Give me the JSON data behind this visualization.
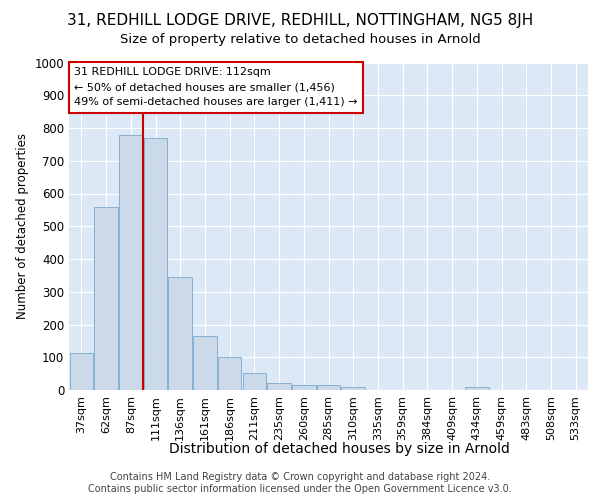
{
  "title1": "31, REDHILL LODGE DRIVE, REDHILL, NOTTINGHAM, NG5 8JH",
  "title2": "Size of property relative to detached houses in Arnold",
  "xlabel": "Distribution of detached houses by size in Arnold",
  "ylabel": "Number of detached properties",
  "categories": [
    "37sqm",
    "62sqm",
    "87sqm",
    "111sqm",
    "136sqm",
    "161sqm",
    "186sqm",
    "211sqm",
    "235sqm",
    "260sqm",
    "285sqm",
    "310sqm",
    "335sqm",
    "359sqm",
    "384sqm",
    "409sqm",
    "434sqm",
    "459sqm",
    "483sqm",
    "508sqm",
    "533sqm"
  ],
  "values": [
    112,
    560,
    780,
    770,
    345,
    165,
    100,
    52,
    20,
    15,
    15,
    8,
    0,
    0,
    0,
    0,
    10,
    0,
    0,
    0,
    0
  ],
  "bar_color": "#ccd9e8",
  "bar_edge_color": "#7aaad0",
  "annotation_text1": "31 REDHILL LODGE DRIVE: 112sqm",
  "annotation_text2": "← 50% of detached houses are smaller (1,456)",
  "annotation_text3": "49% of semi-detached houses are larger (1,411) →",
  "annotation_box_color": "#ffffff",
  "annotation_box_edge": "#cc0000",
  "vline_color": "#cc0000",
  "ylim": [
    0,
    1000
  ],
  "yticks": [
    0,
    100,
    200,
    300,
    400,
    500,
    600,
    700,
    800,
    900,
    1000
  ],
  "footer1": "Contains HM Land Registry data © Crown copyright and database right 2024.",
  "footer2": "Contains public sector information licensed under the Open Government Licence v3.0.",
  "bg_color": "#ffffff",
  "plot_bg_color": "#dce8f5",
  "grid_color": "#ffffff",
  "title1_fontsize": 11,
  "title2_fontsize": 9.5,
  "ylabel_fontsize": 8.5,
  "xlabel_fontsize": 10,
  "xtick_fontsize": 8,
  "ytick_fontsize": 8.5,
  "footer_fontsize": 7,
  "ann_fontsize": 8
}
